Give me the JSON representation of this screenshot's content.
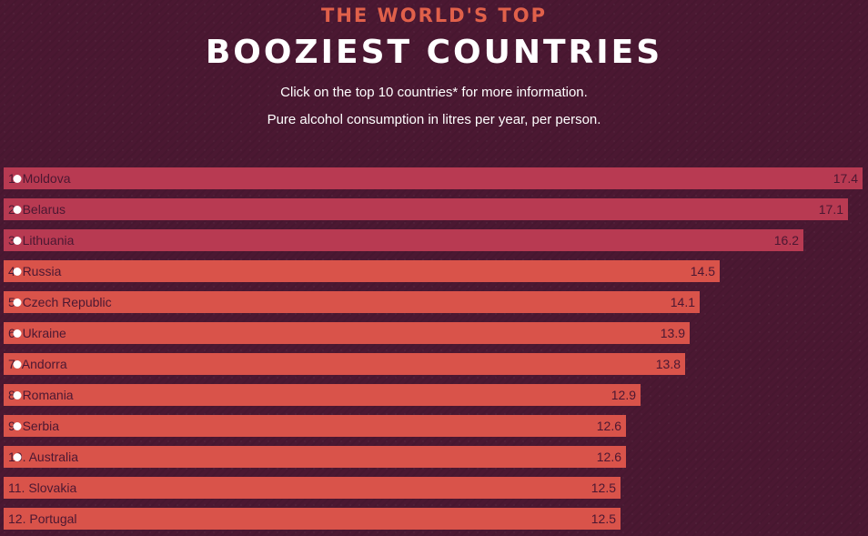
{
  "header": {
    "kicker": "THE WORLD'S TOP",
    "title": "BOOZIEST COUNTRIES",
    "instruction": "Click on the top 10 countries* for more information.",
    "subtitle": "Pure alcohol consumption in litres per year, per person."
  },
  "colors": {
    "background": "#4b1832",
    "bar_top": "#b83a52",
    "bar_rest": "#d9534a",
    "label_text": "#4b1832",
    "kicker": "#e0604a",
    "dot": "#ffffff"
  },
  "chart_data": {
    "type": "bar",
    "orientation": "horizontal",
    "categories": [
      "1. Moldova",
      "2. Belarus",
      "3. Lithuania",
      "4. Russia",
      "5. Czech Republic",
      "6. Ukraine",
      "7. Andorra",
      "8. Romania",
      "9. Serbia",
      "10. Australia",
      "11. Slovakia",
      "12. Portugal"
    ],
    "values": [
      17.4,
      17.1,
      16.2,
      14.5,
      14.1,
      13.9,
      13.8,
      12.9,
      12.6,
      12.6,
      12.5,
      12.5
    ],
    "value_labels": [
      "17.4",
      "17.1",
      "16.2",
      "14.5",
      "14.1",
      "13.9",
      "13.8",
      "12.9",
      "12.6",
      "12.6",
      "12.5",
      "12.5"
    ],
    "clickable": [
      true,
      true,
      true,
      true,
      true,
      true,
      true,
      true,
      true,
      true,
      false,
      false
    ],
    "highlight_top": 3,
    "xlim": [
      0,
      17.4
    ],
    "title": "BOOZIEST COUNTRIES",
    "xlabel": "",
    "ylabel": "",
    "grid": false,
    "legend": "none"
  }
}
